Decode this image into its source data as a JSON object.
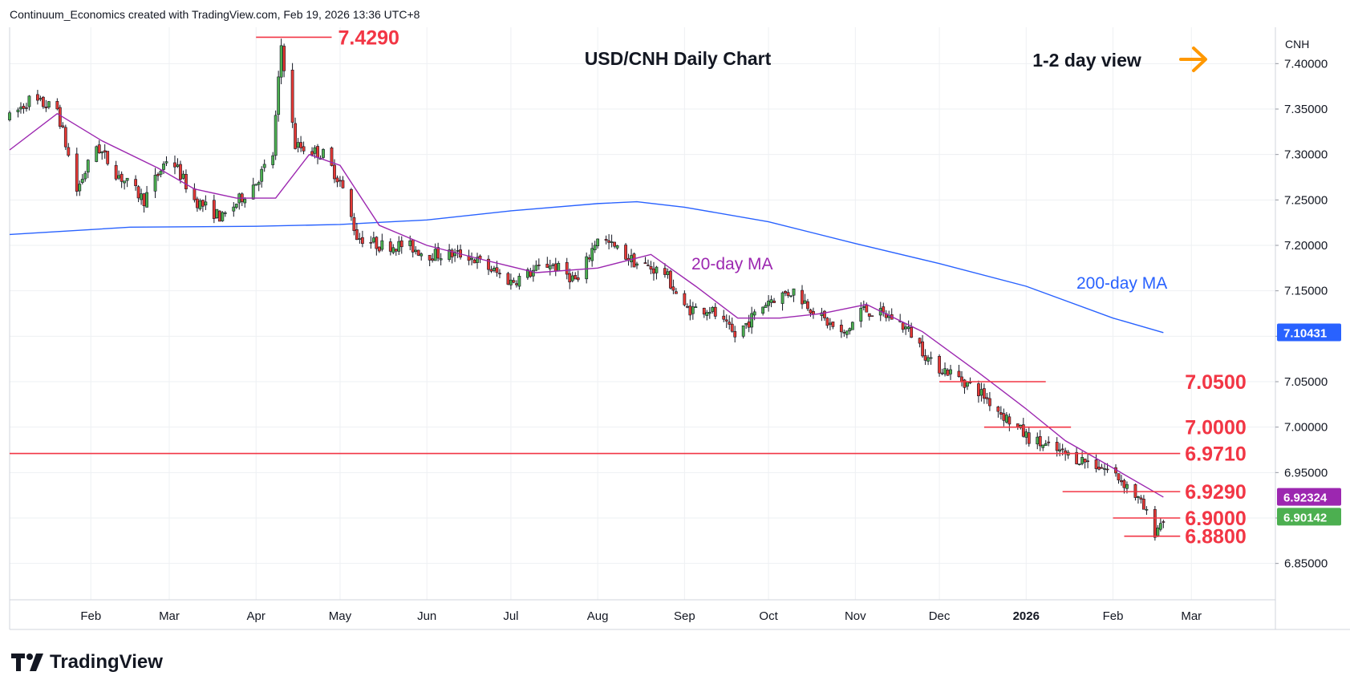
{
  "header": {
    "credit": "Continuum_Economics created with TradingView.com, Feb 19, 2026 13:36 UTC+8"
  },
  "brand": {
    "name": "TradingView"
  },
  "colors": {
    "up": "#4caf50",
    "down": "#e53935",
    "sma20": "#9c27b0",
    "sma200": "#2962ff",
    "level": "#f23645",
    "arrow": "#ff9800",
    "grid": "#eef0f3",
    "text": "#131722"
  },
  "chart_data": {
    "type": "line",
    "title": "USD/CNH Daily Chart",
    "subtitle": "1-2 day view",
    "symbol": "CNH",
    "ylim": [
      6.81,
      7.44
    ],
    "y_ticks": [
      "7.40000",
      "7.35000",
      "7.30000",
      "7.25000",
      "7.20000",
      "7.15000",
      "7.10000",
      "7.05000",
      "7.00000",
      "6.95000",
      "6.90000",
      "6.85000"
    ],
    "x_ticks": [
      "Feb",
      "Mar",
      "Apr",
      "May",
      "Jun",
      "Jul",
      "Aug",
      "Sep",
      "Oct",
      "Nov",
      "Dec",
      "2026",
      "Feb",
      "Mar"
    ],
    "x_tick_dates": [
      "2025-02-01",
      "2025-03-01",
      "2025-04-01",
      "2025-05-01",
      "2025-06-01",
      "2025-07-01",
      "2025-08-01",
      "2025-09-01",
      "2025-10-01",
      "2025-11-01",
      "2025-12-01",
      "2026-01-01",
      "2026-02-01",
      "2026-03-01"
    ],
    "x_range": [
      "2025-01-03",
      "2026-03-31"
    ],
    "price_anchors": {
      "dates": [
        "2025-01-03",
        "2025-01-10",
        "2025-01-20",
        "2025-01-27",
        "2025-02-03",
        "2025-02-10",
        "2025-02-20",
        "2025-03-01",
        "2025-03-10",
        "2025-03-20",
        "2025-04-01",
        "2025-04-07",
        "2025-04-10",
        "2025-04-15",
        "2025-04-25",
        "2025-05-01",
        "2025-05-07",
        "2025-05-15",
        "2025-05-25",
        "2025-06-01",
        "2025-06-15",
        "2025-07-01",
        "2025-07-15",
        "2025-07-25",
        "2025-08-01",
        "2025-08-15",
        "2025-08-25",
        "2025-09-01",
        "2025-09-10",
        "2025-09-19",
        "2025-09-25",
        "2025-10-01",
        "2025-10-10",
        "2025-10-20",
        "2025-10-28",
        "2025-11-03",
        "2025-11-15",
        "2025-11-22",
        "2025-11-28",
        "2025-12-05",
        "2025-12-15",
        "2025-12-25",
        "2026-01-01",
        "2026-01-07",
        "2026-01-15",
        "2026-01-25",
        "2026-02-01",
        "2026-02-08",
        "2026-02-12",
        "2026-02-16",
        "2026-02-19"
      ],
      "values": [
        7.34,
        7.36,
        7.35,
        7.26,
        7.31,
        7.28,
        7.25,
        7.3,
        7.25,
        7.23,
        7.27,
        7.3,
        7.42,
        7.31,
        7.3,
        7.27,
        7.21,
        7.2,
        7.2,
        7.19,
        7.19,
        7.16,
        7.18,
        7.16,
        7.21,
        7.18,
        7.17,
        7.13,
        7.13,
        7.1,
        7.12,
        7.14,
        7.15,
        7.12,
        7.1,
        7.13,
        7.12,
        7.1,
        7.07,
        7.06,
        7.04,
        7.01,
        6.99,
        6.98,
        6.97,
        6.96,
        6.95,
        6.93,
        6.91,
        6.885,
        6.9
      ]
    },
    "series": [
      {
        "name": "20-day MA",
        "dates": [
          "2025-01-03",
          "2025-01-20",
          "2025-02-05",
          "2025-02-25",
          "2025-03-10",
          "2025-03-25",
          "2025-04-08",
          "2025-04-20",
          "2025-05-01",
          "2025-05-15",
          "2025-06-01",
          "2025-06-20",
          "2025-07-10",
          "2025-08-01",
          "2025-08-20",
          "2025-09-05",
          "2025-09-20",
          "2025-10-05",
          "2025-10-20",
          "2025-11-05",
          "2025-11-25",
          "2025-12-15",
          "2026-01-01",
          "2026-01-15",
          "2026-02-01",
          "2026-02-19"
        ],
        "values": [
          7.305,
          7.345,
          7.315,
          7.285,
          7.262,
          7.252,
          7.252,
          7.3,
          7.288,
          7.222,
          7.2,
          7.185,
          7.17,
          7.175,
          7.19,
          7.155,
          7.12,
          7.12,
          7.125,
          7.135,
          7.105,
          7.06,
          7.02,
          6.985,
          6.955,
          6.923
        ]
      },
      {
        "name": "200-day MA",
        "dates": [
          "2025-01-03",
          "2025-02-15",
          "2025-04-01",
          "2025-05-01",
          "2025-06-01",
          "2025-07-01",
          "2025-08-01",
          "2025-08-15",
          "2025-09-01",
          "2025-10-01",
          "2025-11-01",
          "2025-12-01",
          "2026-01-01",
          "2026-02-01",
          "2026-02-19"
        ],
        "values": [
          7.212,
          7.22,
          7.221,
          7.223,
          7.228,
          7.238,
          7.246,
          7.248,
          7.242,
          7.226,
          7.202,
          7.18,
          7.155,
          7.12,
          7.104
        ]
      }
    ],
    "levels": [
      {
        "value": 7.429,
        "label": "7.4290",
        "from": "2025-04-01",
        "to": "2025-04-28"
      },
      {
        "value": 7.05,
        "label": "7.0500",
        "from": "2025-12-01",
        "to": "2026-01-08"
      },
      {
        "value": 7.0,
        "label": "7.0000",
        "from": "2025-12-17",
        "to": "2026-01-17"
      },
      {
        "value": 6.971,
        "label": "6.9710",
        "from": "2025-01-03",
        "to": "2026-02-25"
      },
      {
        "value": 6.929,
        "label": "6.9290",
        "from": "2026-01-14",
        "to": "2026-02-25"
      },
      {
        "value": 6.9,
        "label": "6.9000",
        "from": "2026-02-01",
        "to": "2026-02-25"
      },
      {
        "value": 6.88,
        "label": "6.8800",
        "from": "2026-02-05",
        "to": "2026-02-25"
      }
    ],
    "annotations": {
      "sma20": "20-day MA",
      "sma200": "200-day MA"
    },
    "price_badges": [
      {
        "value": 7.10431,
        "label": "7.10431",
        "color": "#2962ff"
      },
      {
        "value": 6.92324,
        "label": "6.92324",
        "color": "#9c27b0"
      },
      {
        "value": 6.90142,
        "label": "6.90142",
        "color": "#4caf50"
      }
    ],
    "grid": true,
    "legend": "none"
  }
}
